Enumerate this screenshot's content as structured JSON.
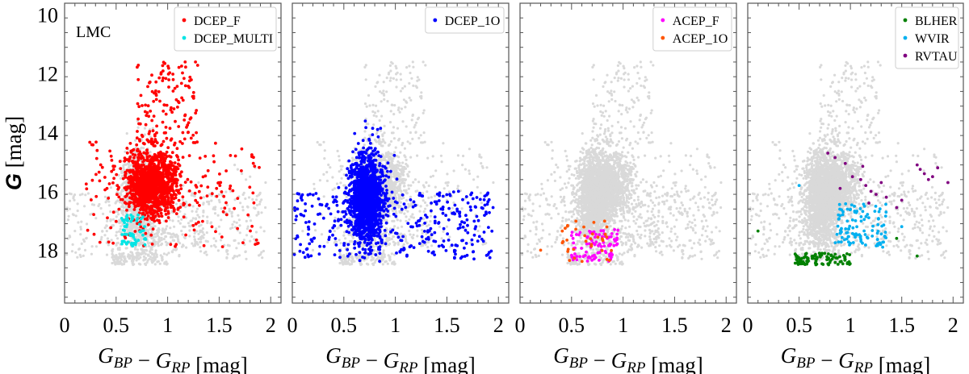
{
  "chart_data": {
    "type": "scatter",
    "xlabel": "G_BP − G_RP [mag]",
    "ylabel": "G [mag]",
    "xlim": [
      0,
      2.1
    ],
    "ylim": [
      19.8,
      9.6
    ],
    "xticks": [
      0,
      0.5,
      1,
      1.5,
      2
    ],
    "xtick_labels": [
      "0",
      "0.5",
      "1",
      "1.5",
      "2"
    ],
    "yticks": [
      10,
      12,
      14,
      16,
      18
    ],
    "ytick_labels": [
      "10",
      "12",
      "14",
      "16",
      "18"
    ],
    "background_color": "#d9d9d9",
    "panels": [
      {
        "field_label": "LMC",
        "legend_position": "top-right",
        "series": [
          {
            "name": "DCEP_F",
            "color": "#ff0000",
            "n": 1500,
            "distribution": {
              "core": {
                "x_mean": 0.85,
                "x_sd": 0.12,
                "y_mean": 15.75,
                "y_sd": 0.55
              },
              "plume": {
                "x_range": [
                  0.7,
                  1.3
                ],
                "y_range": [
                  11.6,
                  14.5
                ]
              },
              "tail": {
                "x_range": [
                  0.2,
                  1.9
                ],
                "y_range": [
                  14.3,
                  17.9
                ]
              }
            },
            "examples": [
              [
                0.21,
                15.75
              ],
              [
                1.78,
                16.8
              ],
              [
                1.85,
                17.8
              ],
              [
                1.27,
                11.6
              ],
              [
                1.15,
                12.9
              ],
              [
                1.3,
                17.05
              ]
            ]
          },
          {
            "name": "DCEP_MULTI",
            "color": "#00e5e5",
            "n": 60,
            "distribution": {
              "x_range": [
                0.55,
                0.8
              ],
              "y_range": [
                16.8,
                17.9
              ]
            },
            "examples": [
              [
                0.6,
                17.2
              ],
              [
                0.7,
                17.0
              ],
              [
                0.65,
                17.5
              ]
            ]
          }
        ]
      },
      {
        "field_label": "",
        "legend_position": "top-right",
        "series": [
          {
            "name": "DCEP_1O",
            "color": "#0000ff",
            "n": 1800,
            "distribution": {
              "core": {
                "x_mean": 0.72,
                "x_sd": 0.08,
                "y_mean": 16.2,
                "y_sd": 0.75
              },
              "tail": {
                "x_range": [
                  0.0,
                  1.95
                ],
                "y_range": [
                  16.0,
                  18.3
                ]
              }
            },
            "examples": [
              [
                0.02,
                18.15
              ],
              [
                1.9,
                18.15
              ],
              [
                1.6,
                17.85
              ],
              [
                0.05,
                16.6
              ],
              [
                0.8,
                14.6
              ]
            ]
          }
        ]
      },
      {
        "field_label": "",
        "legend_position": "top-right",
        "series": [
          {
            "name": "ACEP_F",
            "color": "#ff00ff",
            "n": 90,
            "distribution": {
              "x_range": [
                0.5,
                0.95
              ],
              "y_range": [
                17.3,
                18.4
              ]
            },
            "examples": [
              [
                0.5,
                17.5
              ],
              [
                0.72,
                18.3
              ],
              [
                0.88,
                17.8
              ]
            ]
          },
          {
            "name": "ACEP_1O",
            "color": "#ff5500",
            "n": 35,
            "distribution": {
              "x_range": [
                0.4,
                0.9
              ],
              "y_range": [
                17.0,
                18.4
              ]
            },
            "examples": [
              [
                0.2,
                18.0
              ],
              [
                0.41,
                17.35
              ],
              [
                0.48,
                18.35
              ]
            ]
          }
        ]
      },
      {
        "field_label": "",
        "legend_position": "top-right",
        "series": [
          {
            "name": "BLHER",
            "color": "#008000",
            "n": 100,
            "distribution": {
              "x_range": [
                0.45,
                1.0
              ],
              "y_range": [
                18.1,
                18.5
              ]
            },
            "examples": [
              [
                0.1,
                17.35
              ],
              [
                0.55,
                18.45
              ],
              [
                0.9,
                18.4
              ],
              [
                1.45,
                17.6
              ],
              [
                1.65,
                18.2
              ]
            ]
          },
          {
            "name": "WVIR",
            "color": "#00b0f0",
            "n": 110,
            "distribution": {
              "x_range": [
                0.85,
                1.35
              ],
              "y_range": [
                16.4,
                17.9
              ]
            },
            "examples": [
              [
                0.5,
                15.8
              ],
              [
                1.05,
                17.0
              ],
              [
                1.5,
                17.2
              ]
            ]
          },
          {
            "name": "RVTAU",
            "color": "#800080",
            "n": 22,
            "examples": [
              [
                0.78,
                14.7
              ],
              [
                0.85,
                14.85
              ],
              [
                0.95,
                15.05
              ],
              [
                1.02,
                15.5
              ],
              [
                1.1,
                15.6
              ],
              [
                1.15,
                15.8
              ],
              [
                1.2,
                16.0
              ],
              [
                1.25,
                16.1
              ],
              [
                1.3,
                15.7
              ],
              [
                1.35,
                16.2
              ],
              [
                1.45,
                16.55
              ],
              [
                1.5,
                16.3
              ],
              [
                1.65,
                15.1
              ],
              [
                1.68,
                15.25
              ],
              [
                1.72,
                15.4
              ],
              [
                1.76,
                15.6
              ],
              [
                1.8,
                15.5
              ],
              [
                1.85,
                15.2
              ],
              [
                1.95,
                15.7
              ],
              [
                0.9,
                15.9
              ],
              [
                1.18,
                16.4
              ],
              [
                1.12,
                15.15
              ]
            ]
          }
        ]
      }
    ]
  }
}
